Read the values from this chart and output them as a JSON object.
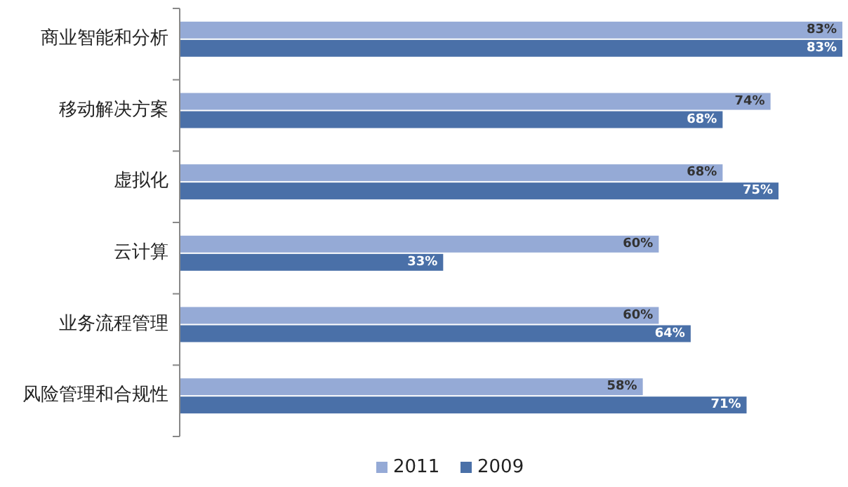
{
  "chart_data": {
    "type": "bar",
    "orientation": "horizontal",
    "categories": [
      "商业智能和分析",
      "移动解决方案",
      "虚拟化",
      "云计算",
      "业务流程管理",
      "风险管理和合规性"
    ],
    "series": [
      {
        "name": "2011",
        "color": "#95aad6",
        "values": [
          83,
          74,
          68,
          60,
          60,
          58
        ],
        "value_labels": [
          "83%",
          "74%",
          "68%",
          "60%",
          "60%",
          "58%"
        ]
      },
      {
        "name": "2009",
        "color": "#4a70a8",
        "values": [
          83,
          68,
          75,
          33,
          64,
          71
        ],
        "value_labels": [
          "83%",
          "68%",
          "75%",
          "33%",
          "64%",
          "71%"
        ]
      }
    ],
    "legend": "bottom"
  }
}
